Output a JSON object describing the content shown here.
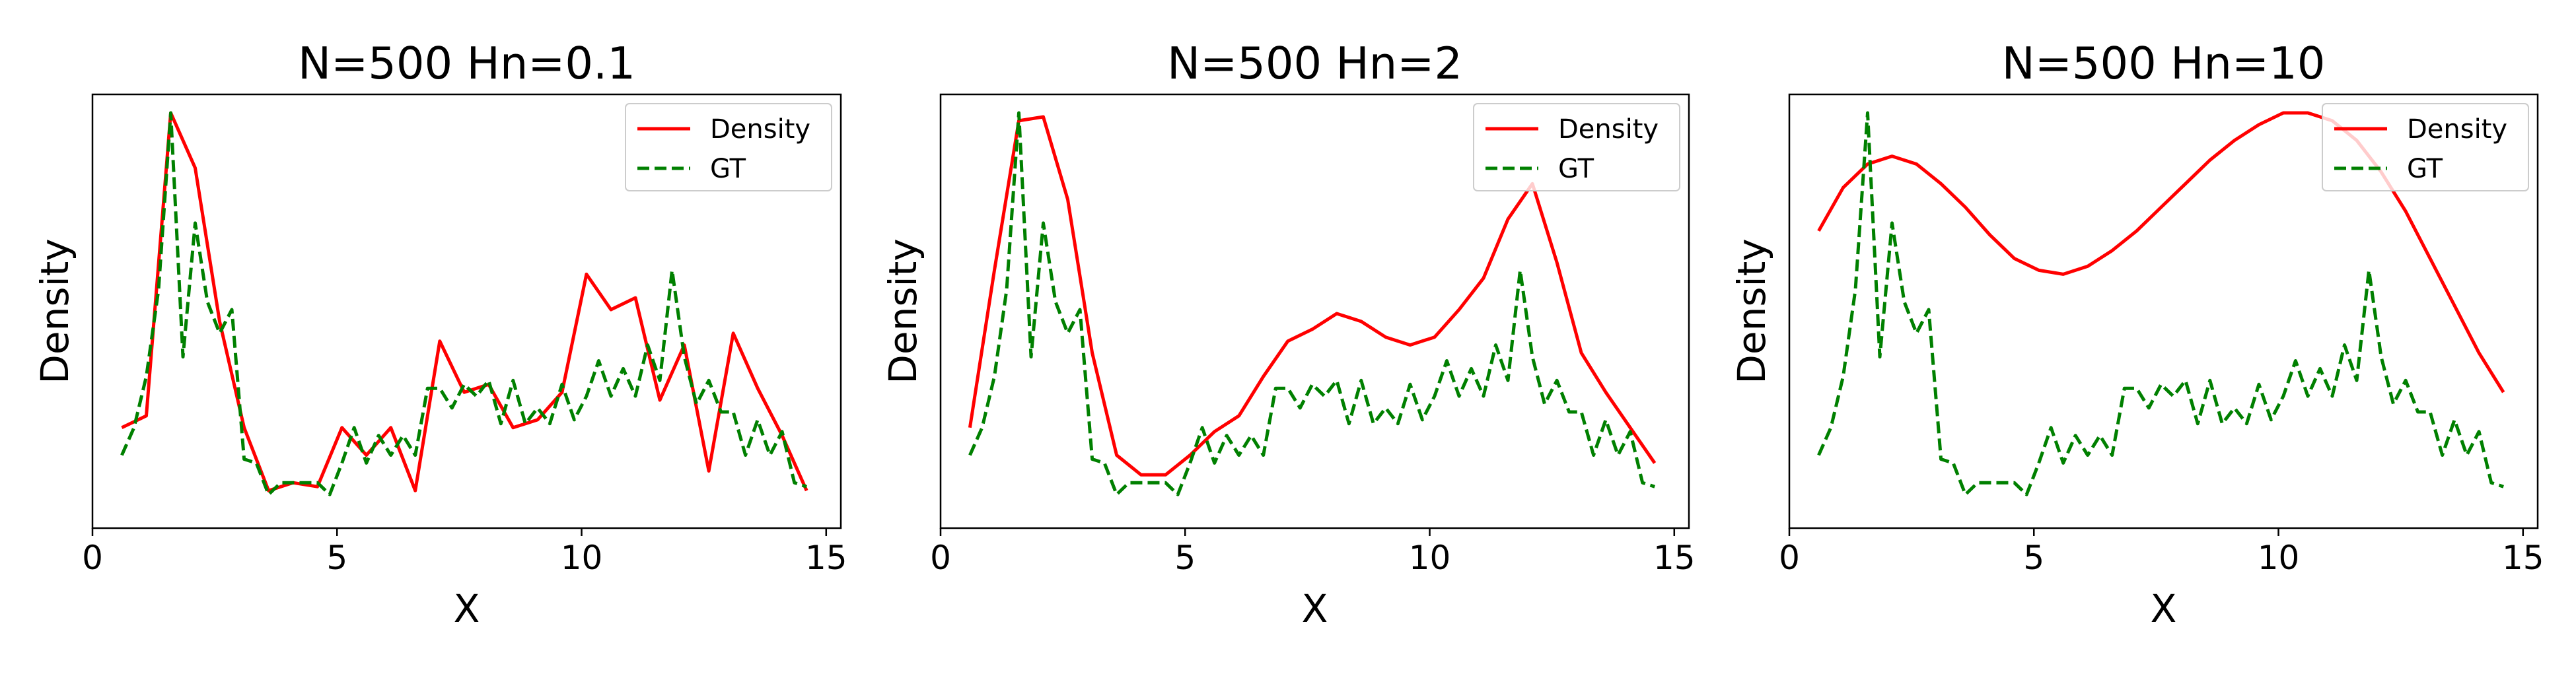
{
  "chart_data": [
    {
      "type": "line",
      "title": "N=500  Hn=0.1",
      "xlabel": "X",
      "ylabel": "Density",
      "xlim": [
        0,
        15.3
      ],
      "ylim": [
        0,
        1
      ],
      "xticks": [
        0,
        5,
        10,
        15
      ],
      "xticklabels": [
        "0",
        "5",
        "10",
        "15"
      ],
      "legend": {
        "position": "top-right",
        "entries": [
          "Density",
          "GT"
        ]
      },
      "series": [
        {
          "name": "Density",
          "color": "#ff0000",
          "style": "solid",
          "x": [
            0.6,
            1.1,
            1.6,
            2.1,
            2.6,
            3.1,
            3.6,
            4.1,
            4.6,
            5.1,
            5.6,
            6.1,
            6.6,
            7.1,
            7.6,
            8.1,
            8.6,
            9.1,
            9.6,
            10.1,
            10.6,
            11.1,
            11.6,
            12.1,
            12.6,
            13.1,
            13.6,
            14.1,
            14.6
          ],
          "values": [
            0.2,
            0.23,
            1.0,
            0.86,
            0.47,
            0.2,
            0.04,
            0.06,
            0.05,
            0.2,
            0.13,
            0.2,
            0.04,
            0.42,
            0.29,
            0.31,
            0.2,
            0.22,
            0.29,
            0.59,
            0.5,
            0.53,
            0.27,
            0.41,
            0.09,
            0.44,
            0.3,
            0.18,
            0.04
          ]
        },
        {
          "name": "GT",
          "color": "#008000",
          "style": "dashed",
          "x": [
            0.6,
            0.85,
            1.1,
            1.35,
            1.6,
            1.85,
            2.1,
            2.35,
            2.6,
            2.85,
            3.1,
            3.35,
            3.6,
            3.85,
            4.1,
            4.35,
            4.6,
            4.85,
            5.1,
            5.35,
            5.6,
            5.85,
            6.1,
            6.35,
            6.6,
            6.85,
            7.1,
            7.35,
            7.6,
            7.85,
            8.1,
            8.35,
            8.6,
            8.85,
            9.1,
            9.35,
            9.6,
            9.85,
            10.1,
            10.35,
            10.6,
            10.85,
            11.1,
            11.35,
            11.6,
            11.85,
            12.1,
            12.35,
            12.6,
            12.85,
            13.1,
            13.35,
            13.6,
            13.85,
            14.1,
            14.35,
            14.6
          ],
          "values": [
            0.13,
            0.2,
            0.33,
            0.55,
            1.0,
            0.38,
            0.72,
            0.52,
            0.44,
            0.5,
            0.12,
            0.11,
            0.03,
            0.06,
            0.06,
            0.06,
            0.06,
            0.03,
            0.11,
            0.2,
            0.11,
            0.18,
            0.13,
            0.18,
            0.13,
            0.3,
            0.3,
            0.25,
            0.31,
            0.28,
            0.32,
            0.21,
            0.32,
            0.21,
            0.25,
            0.21,
            0.31,
            0.22,
            0.28,
            0.37,
            0.28,
            0.35,
            0.28,
            0.41,
            0.32,
            0.6,
            0.38,
            0.26,
            0.32,
            0.24,
            0.24,
            0.13,
            0.22,
            0.13,
            0.19,
            0.06,
            0.05
          ]
        }
      ]
    },
    {
      "type": "line",
      "title": "N=500  Hn=2",
      "xlabel": "X",
      "ylabel": "Density",
      "xlim": [
        0,
        15.3
      ],
      "ylim": [
        0,
        1
      ],
      "xticks": [
        0,
        5,
        10,
        15
      ],
      "xticklabels": [
        "0",
        "5",
        "10",
        "15"
      ],
      "legend": {
        "position": "top-right",
        "entries": [
          "Density",
          "GT"
        ]
      },
      "series": [
        {
          "name": "Density",
          "color": "#ff0000",
          "style": "solid",
          "x": [
            0.6,
            1.1,
            1.6,
            2.1,
            2.6,
            3.1,
            3.6,
            4.1,
            4.6,
            5.1,
            5.6,
            6.1,
            6.6,
            7.1,
            7.6,
            8.1,
            8.6,
            9.1,
            9.6,
            10.1,
            10.6,
            11.1,
            11.6,
            12.1,
            12.6,
            13.1,
            13.6,
            14.1,
            14.6
          ],
          "values": [
            0.2,
            0.6,
            0.98,
            0.99,
            0.78,
            0.39,
            0.13,
            0.08,
            0.08,
            0.13,
            0.19,
            0.23,
            0.33,
            0.42,
            0.45,
            0.49,
            0.47,
            0.43,
            0.41,
            0.43,
            0.5,
            0.58,
            0.73,
            0.82,
            0.62,
            0.39,
            0.29,
            0.2,
            0.11
          ]
        },
        {
          "name": "GT",
          "color": "#008000",
          "style": "dashed",
          "x": [
            0.6,
            0.85,
            1.1,
            1.35,
            1.6,
            1.85,
            2.1,
            2.35,
            2.6,
            2.85,
            3.1,
            3.35,
            3.6,
            3.85,
            4.1,
            4.35,
            4.6,
            4.85,
            5.1,
            5.35,
            5.6,
            5.85,
            6.1,
            6.35,
            6.6,
            6.85,
            7.1,
            7.35,
            7.6,
            7.85,
            8.1,
            8.35,
            8.6,
            8.85,
            9.1,
            9.35,
            9.6,
            9.85,
            10.1,
            10.35,
            10.6,
            10.85,
            11.1,
            11.35,
            11.6,
            11.85,
            12.1,
            12.35,
            12.6,
            12.85,
            13.1,
            13.35,
            13.6,
            13.85,
            14.1,
            14.35,
            14.6
          ],
          "values": [
            0.13,
            0.2,
            0.33,
            0.55,
            1.0,
            0.38,
            0.72,
            0.52,
            0.44,
            0.5,
            0.12,
            0.11,
            0.03,
            0.06,
            0.06,
            0.06,
            0.06,
            0.03,
            0.11,
            0.2,
            0.11,
            0.18,
            0.13,
            0.18,
            0.13,
            0.3,
            0.3,
            0.25,
            0.31,
            0.28,
            0.32,
            0.21,
            0.32,
            0.21,
            0.25,
            0.21,
            0.31,
            0.22,
            0.28,
            0.37,
            0.28,
            0.35,
            0.28,
            0.41,
            0.32,
            0.6,
            0.38,
            0.26,
            0.32,
            0.24,
            0.24,
            0.13,
            0.22,
            0.13,
            0.19,
            0.06,
            0.05
          ]
        }
      ]
    },
    {
      "type": "line",
      "title": "N=500  Hn=10",
      "xlabel": "X",
      "ylabel": "Density",
      "xlim": [
        0,
        15.3
      ],
      "ylim": [
        0,
        1
      ],
      "xticks": [
        0,
        5,
        10,
        15
      ],
      "xticklabels": [
        "0",
        "5",
        "10",
        "15"
      ],
      "legend": {
        "position": "top-right",
        "entries": [
          "Density",
          "GT"
        ]
      },
      "series": [
        {
          "name": "Density",
          "color": "#ff0000",
          "style": "solid",
          "x": [
            0.6,
            1.1,
            1.6,
            2.1,
            2.6,
            3.1,
            3.6,
            4.1,
            4.6,
            5.1,
            5.6,
            6.1,
            6.6,
            7.1,
            7.6,
            8.1,
            8.6,
            9.1,
            9.6,
            10.1,
            10.6,
            11.1,
            11.6,
            12.1,
            12.6,
            13.1,
            13.6,
            14.1,
            14.6
          ],
          "values": [
            0.7,
            0.81,
            0.87,
            0.89,
            0.87,
            0.82,
            0.76,
            0.69,
            0.63,
            0.6,
            0.59,
            0.61,
            0.65,
            0.7,
            0.76,
            0.82,
            0.88,
            0.93,
            0.97,
            1.0,
            1.0,
            0.98,
            0.93,
            0.85,
            0.75,
            0.63,
            0.51,
            0.39,
            0.29
          ]
        },
        {
          "name": "GT",
          "color": "#008000",
          "style": "dashed",
          "x": [
            0.6,
            0.85,
            1.1,
            1.35,
            1.6,
            1.85,
            2.1,
            2.35,
            2.6,
            2.85,
            3.1,
            3.35,
            3.6,
            3.85,
            4.1,
            4.35,
            4.6,
            4.85,
            5.1,
            5.35,
            5.6,
            5.85,
            6.1,
            6.35,
            6.6,
            6.85,
            7.1,
            7.35,
            7.6,
            7.85,
            8.1,
            8.35,
            8.6,
            8.85,
            9.1,
            9.35,
            9.6,
            9.85,
            10.1,
            10.35,
            10.6,
            10.85,
            11.1,
            11.35,
            11.6,
            11.85,
            12.1,
            12.35,
            12.6,
            12.85,
            13.1,
            13.35,
            13.6,
            13.85,
            14.1,
            14.35,
            14.6
          ],
          "values": [
            0.13,
            0.2,
            0.33,
            0.55,
            1.0,
            0.38,
            0.72,
            0.52,
            0.44,
            0.5,
            0.12,
            0.11,
            0.03,
            0.06,
            0.06,
            0.06,
            0.06,
            0.03,
            0.11,
            0.2,
            0.11,
            0.18,
            0.13,
            0.18,
            0.13,
            0.3,
            0.3,
            0.25,
            0.31,
            0.28,
            0.32,
            0.21,
            0.32,
            0.21,
            0.25,
            0.21,
            0.31,
            0.22,
            0.28,
            0.37,
            0.28,
            0.35,
            0.28,
            0.41,
            0.32,
            0.6,
            0.38,
            0.26,
            0.32,
            0.24,
            0.24,
            0.13,
            0.22,
            0.13,
            0.19,
            0.06,
            0.05
          ]
        }
      ]
    }
  ]
}
